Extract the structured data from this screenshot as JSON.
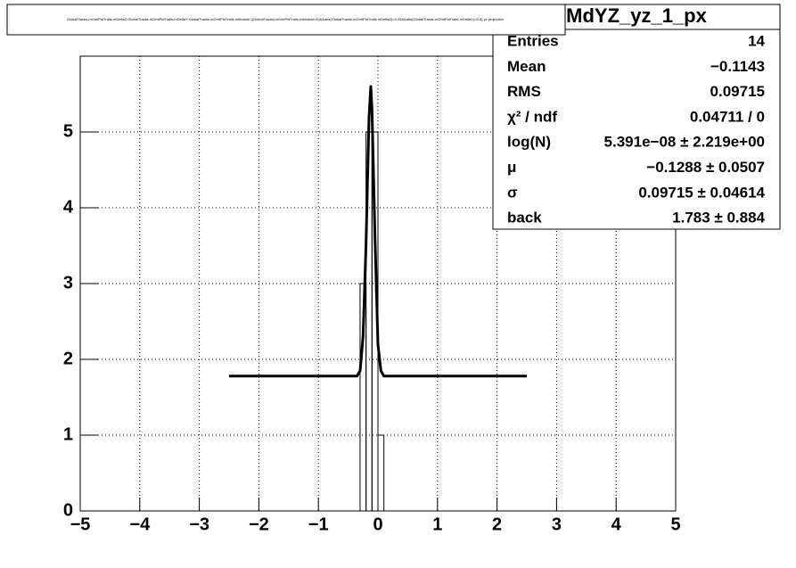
{
  "chart_data": {
    "type": "histogram",
    "title": "GlobalTracks.mGmtPidTraits.mDeltaZ:GlobalTracks.mGmtPidTraits.mDeltaY:GlobalTracks.mGmtPidTraits.mModule {(GlobalTracks.mGmtPidTraits.mModule>0)&&abs(GlobalTracks.mGmtPidTraits.mDeltaZ)<0.05&&abs(GlobalTracks.mGmtPidTraits.mDeltaY)<0.5}  yz projection",
    "bins": [
      -0.3,
      -0.2,
      -0.1,
      0,
      0.1
    ],
    "values": [
      3,
      5,
      5,
      1
    ],
    "color": "#000000",
    "fit": {
      "color": "#000000",
      "x": [
        -2.5,
        -0.35,
        -0.3,
        -0.25,
        -0.2,
        -0.15,
        -0.12,
        -0.1,
        -0.05,
        0,
        0.05,
        0.1,
        2.5
      ],
      "y": [
        1.78,
        1.78,
        1.85,
        2.3,
        3.5,
        5.2,
        5.6,
        5.3,
        3.6,
        2.2,
        1.85,
        1.78,
        1.78
      ]
    },
    "xlim": [
      -5,
      5
    ],
    "ylim": [
      0,
      6
    ],
    "xticks": [
      {
        "value": -5,
        "label": "−5"
      },
      {
        "value": -4,
        "label": "−4"
      },
      {
        "value": -3,
        "label": "−3"
      },
      {
        "value": -2,
        "label": "−2"
      },
      {
        "value": -1,
        "label": "−1"
      },
      0,
      1,
      2,
      3,
      4,
      5
    ],
    "yticks": [
      0,
      1,
      2,
      3,
      4,
      5
    ],
    "grid": true,
    "stats": {
      "title": "MdYZ_yz_1_px",
      "rows": [
        [
          "Entries",
          "14"
        ],
        [
          "Mean",
          "−0.1143"
        ],
        [
          "RMS",
          "0.09715"
        ],
        [
          "χ² / ndf",
          "0.04711 / 0"
        ],
        [
          "log(N)",
          "5.391e−08 ± 2.219e+00"
        ],
        [
          "μ",
          "−0.1288 ± 0.0507"
        ],
        [
          "σ",
          "0.09715 ± 0.04614"
        ],
        [
          "back",
          "1.783 ± 0.884"
        ]
      ]
    }
  }
}
